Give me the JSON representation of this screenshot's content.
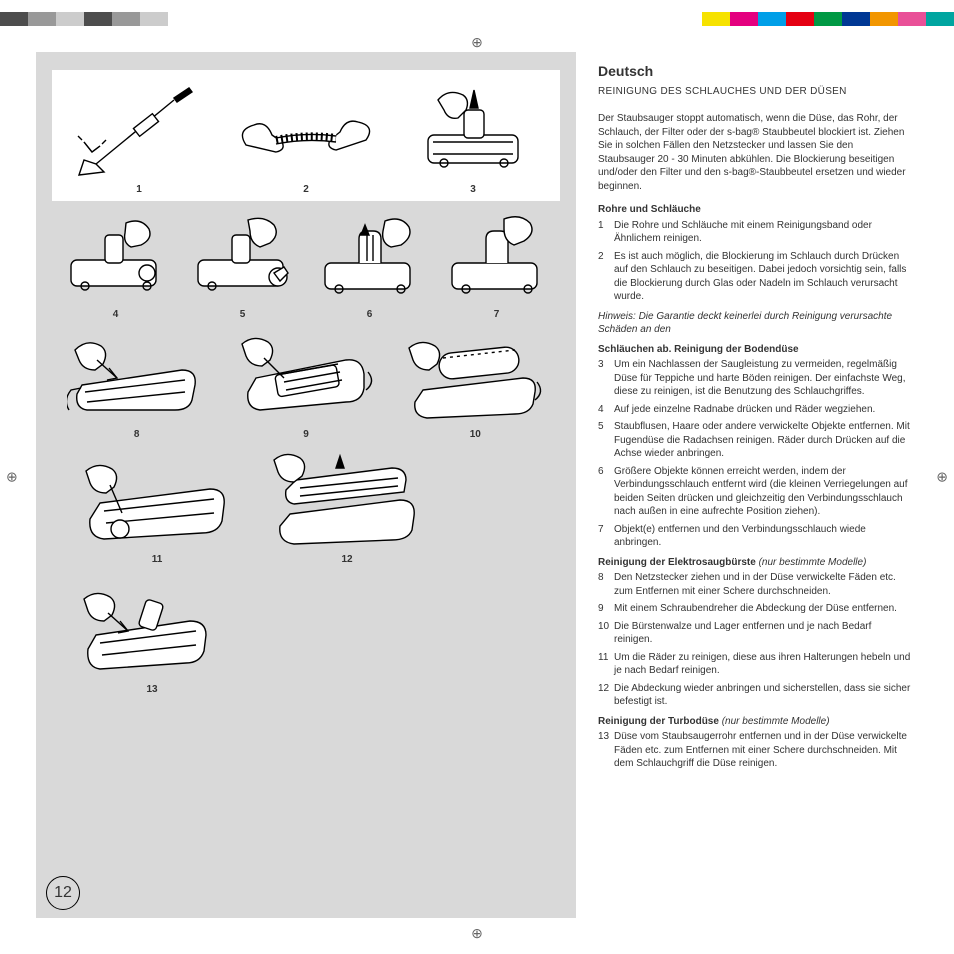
{
  "colorBar": {
    "left": [
      "#4d4d4d",
      "#999999",
      "#cccccc",
      "#4d4d4d",
      "#999999",
      "#cccccc"
    ],
    "right": [
      "#f6e200",
      "#e4007f",
      "#009fe8",
      "#e50012",
      "#009944",
      "#003894",
      "#f29600",
      "#e95098",
      "#00a5a0"
    ]
  },
  "pageNumber": "12",
  "figures": {
    "row1": [
      "1",
      "2",
      "3"
    ],
    "row2": [
      "4",
      "5",
      "6",
      "7"
    ],
    "row3": [
      "8",
      "9",
      "10"
    ],
    "row4": [
      "11",
      "12"
    ],
    "row5": [
      "13"
    ]
  },
  "text": {
    "lang": "Deutsch",
    "heading": "REINIGUNG DES SCHLAUCHES UND DER DÜSEN",
    "intro": "Der Staubsauger stoppt automatisch, wenn die Düse, das Rohr, der Schlauch, der Filter oder der s-bag® Staubbeutel blockiert ist. Ziehen Sie in solchen Fällen den Netzstecker und lassen Sie den Staubsauger 20 - 30 Minuten abkühlen. Die Blockierung beseitigen und/oder den Filter und den s-bag®-Staubbeutel ersetzen und wieder beginnen.",
    "sec1Title": "Rohre und Schläuche",
    "sec1Items": [
      {
        "n": "1",
        "t": "Die Rohre und Schläuche mit einem Reinigungsband oder Ähnlichem reinigen."
      },
      {
        "n": "2",
        "t": "Es ist auch möglich, die Blockierung im Schlauch durch Drücken auf den Schlauch zu beseitigen. Dabei jedoch vorsichtig sein, falls die Blockierung durch Glas oder Nadeln im Schlauch verursacht wurde."
      }
    ],
    "hint": "Hinweis: Die Garantie deckt keinerlei durch Reinigung verursachte Schäden an den",
    "sec2Title": "Schläuchen ab. Reinigung der Bodendüse",
    "sec2Items": [
      {
        "n": "3",
        "t": "Um ein Nachlassen der Saugleistung zu vermeiden, regelmäßig Düse für Teppiche und harte Böden reinigen. Der einfachste Weg, diese zu reinigen, ist die Benutzung des Schlauchgriffes."
      },
      {
        "n": "4",
        "t": "Auf jede einzelne Radnabe drücken und Räder wegziehen."
      },
      {
        "n": "5",
        "t": "Staubflusen, Haare oder andere verwickelte Objekte entfernen. Mit Fugendüse die Radachsen reinigen. Räder durch Drücken auf die Achse wieder anbringen."
      },
      {
        "n": "6",
        "t": "Größere Objekte können erreicht werden, indem der Verbindungsschlauch entfernt wird (die kleinen Verriegelungen auf beiden Seiten drücken und gleichzeitig den Verbindungsschlauch nach außen in eine aufrechte Position ziehen)."
      },
      {
        "n": "7",
        "t": "Objekt(e) entfernen und den Verbindungsschlauch wiede anbringen."
      }
    ],
    "sec3Title": "Reinigung der Elektrosaugbürste",
    "sec3Note": " (nur bestimmte Modelle)",
    "sec3Items": [
      {
        "n": "8",
        "t": "Den Netzstecker ziehen und in der Düse verwickelte Fäden etc. zum Entfernen mit einer Schere durchschneiden."
      },
      {
        "n": "9",
        "t": "Mit einem Schraubendreher die Abdeckung der Düse entfernen."
      },
      {
        "n": "10",
        "t": "Die Bürstenwalze und Lager entfernen und je nach Bedarf reinigen."
      },
      {
        "n": "11",
        "t": "Um die Räder zu reinigen, diese aus ihren Halterungen hebeln und je nach Bedarf reinigen."
      },
      {
        "n": "12",
        "t": "Die Abdeckung wieder anbringen und sicherstellen, dass sie sicher befestigt ist."
      }
    ],
    "sec4Title": "Reinigung der Turbodüse",
    "sec4Note": " (nur bestimmte Modelle)",
    "sec4Items": [
      {
        "n": "13",
        "t": "Düse vom Staubsaugerrohr entfernen und in der Düse verwickelte Fäden etc. zum Entfernen mit einer Schere durchschneiden. Mit dem Schlauchgriff die Düse reinigen."
      }
    ]
  }
}
